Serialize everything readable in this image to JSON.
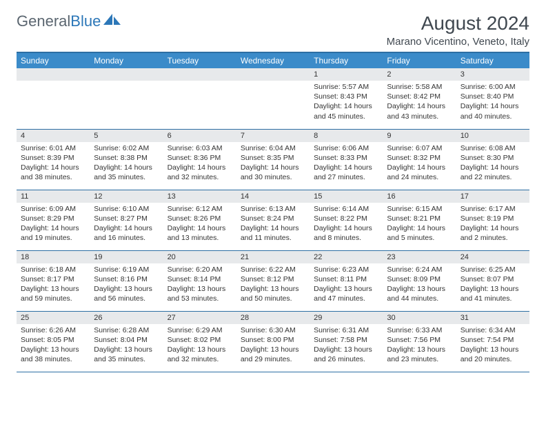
{
  "brand": {
    "part1": "General",
    "part2": "Blue"
  },
  "title": "August 2024",
  "location": "Marano Vicentino, Veneto, Italy",
  "colors": {
    "header_bg": "#3b8bc9",
    "header_border": "#2c6ea3",
    "daynum_bg": "#e7e9eb",
    "text": "#333333",
    "brand_gray": "#5b6670",
    "brand_blue": "#2c77b8"
  },
  "day_headers": [
    "Sunday",
    "Monday",
    "Tuesday",
    "Wednesday",
    "Thursday",
    "Friday",
    "Saturday"
  ],
  "weeks": [
    [
      {
        "n": "",
        "sr": "",
        "ss": "",
        "dl": ""
      },
      {
        "n": "",
        "sr": "",
        "ss": "",
        "dl": ""
      },
      {
        "n": "",
        "sr": "",
        "ss": "",
        "dl": ""
      },
      {
        "n": "",
        "sr": "",
        "ss": "",
        "dl": ""
      },
      {
        "n": "1",
        "sr": "Sunrise: 5:57 AM",
        "ss": "Sunset: 8:43 PM",
        "dl": "Daylight: 14 hours and 45 minutes."
      },
      {
        "n": "2",
        "sr": "Sunrise: 5:58 AM",
        "ss": "Sunset: 8:42 PM",
        "dl": "Daylight: 14 hours and 43 minutes."
      },
      {
        "n": "3",
        "sr": "Sunrise: 6:00 AM",
        "ss": "Sunset: 8:40 PM",
        "dl": "Daylight: 14 hours and 40 minutes."
      }
    ],
    [
      {
        "n": "4",
        "sr": "Sunrise: 6:01 AM",
        "ss": "Sunset: 8:39 PM",
        "dl": "Daylight: 14 hours and 38 minutes."
      },
      {
        "n": "5",
        "sr": "Sunrise: 6:02 AM",
        "ss": "Sunset: 8:38 PM",
        "dl": "Daylight: 14 hours and 35 minutes."
      },
      {
        "n": "6",
        "sr": "Sunrise: 6:03 AM",
        "ss": "Sunset: 8:36 PM",
        "dl": "Daylight: 14 hours and 32 minutes."
      },
      {
        "n": "7",
        "sr": "Sunrise: 6:04 AM",
        "ss": "Sunset: 8:35 PM",
        "dl": "Daylight: 14 hours and 30 minutes."
      },
      {
        "n": "8",
        "sr": "Sunrise: 6:06 AM",
        "ss": "Sunset: 8:33 PM",
        "dl": "Daylight: 14 hours and 27 minutes."
      },
      {
        "n": "9",
        "sr": "Sunrise: 6:07 AM",
        "ss": "Sunset: 8:32 PM",
        "dl": "Daylight: 14 hours and 24 minutes."
      },
      {
        "n": "10",
        "sr": "Sunrise: 6:08 AM",
        "ss": "Sunset: 8:30 PM",
        "dl": "Daylight: 14 hours and 22 minutes."
      }
    ],
    [
      {
        "n": "11",
        "sr": "Sunrise: 6:09 AM",
        "ss": "Sunset: 8:29 PM",
        "dl": "Daylight: 14 hours and 19 minutes."
      },
      {
        "n": "12",
        "sr": "Sunrise: 6:10 AM",
        "ss": "Sunset: 8:27 PM",
        "dl": "Daylight: 14 hours and 16 minutes."
      },
      {
        "n": "13",
        "sr": "Sunrise: 6:12 AM",
        "ss": "Sunset: 8:26 PM",
        "dl": "Daylight: 14 hours and 13 minutes."
      },
      {
        "n": "14",
        "sr": "Sunrise: 6:13 AM",
        "ss": "Sunset: 8:24 PM",
        "dl": "Daylight: 14 hours and 11 minutes."
      },
      {
        "n": "15",
        "sr": "Sunrise: 6:14 AM",
        "ss": "Sunset: 8:22 PM",
        "dl": "Daylight: 14 hours and 8 minutes."
      },
      {
        "n": "16",
        "sr": "Sunrise: 6:15 AM",
        "ss": "Sunset: 8:21 PM",
        "dl": "Daylight: 14 hours and 5 minutes."
      },
      {
        "n": "17",
        "sr": "Sunrise: 6:17 AM",
        "ss": "Sunset: 8:19 PM",
        "dl": "Daylight: 14 hours and 2 minutes."
      }
    ],
    [
      {
        "n": "18",
        "sr": "Sunrise: 6:18 AM",
        "ss": "Sunset: 8:17 PM",
        "dl": "Daylight: 13 hours and 59 minutes."
      },
      {
        "n": "19",
        "sr": "Sunrise: 6:19 AM",
        "ss": "Sunset: 8:16 PM",
        "dl": "Daylight: 13 hours and 56 minutes."
      },
      {
        "n": "20",
        "sr": "Sunrise: 6:20 AM",
        "ss": "Sunset: 8:14 PM",
        "dl": "Daylight: 13 hours and 53 minutes."
      },
      {
        "n": "21",
        "sr": "Sunrise: 6:22 AM",
        "ss": "Sunset: 8:12 PM",
        "dl": "Daylight: 13 hours and 50 minutes."
      },
      {
        "n": "22",
        "sr": "Sunrise: 6:23 AM",
        "ss": "Sunset: 8:11 PM",
        "dl": "Daylight: 13 hours and 47 minutes."
      },
      {
        "n": "23",
        "sr": "Sunrise: 6:24 AM",
        "ss": "Sunset: 8:09 PM",
        "dl": "Daylight: 13 hours and 44 minutes."
      },
      {
        "n": "24",
        "sr": "Sunrise: 6:25 AM",
        "ss": "Sunset: 8:07 PM",
        "dl": "Daylight: 13 hours and 41 minutes."
      }
    ],
    [
      {
        "n": "25",
        "sr": "Sunrise: 6:26 AM",
        "ss": "Sunset: 8:05 PM",
        "dl": "Daylight: 13 hours and 38 minutes."
      },
      {
        "n": "26",
        "sr": "Sunrise: 6:28 AM",
        "ss": "Sunset: 8:04 PM",
        "dl": "Daylight: 13 hours and 35 minutes."
      },
      {
        "n": "27",
        "sr": "Sunrise: 6:29 AM",
        "ss": "Sunset: 8:02 PM",
        "dl": "Daylight: 13 hours and 32 minutes."
      },
      {
        "n": "28",
        "sr": "Sunrise: 6:30 AM",
        "ss": "Sunset: 8:00 PM",
        "dl": "Daylight: 13 hours and 29 minutes."
      },
      {
        "n": "29",
        "sr": "Sunrise: 6:31 AM",
        "ss": "Sunset: 7:58 PM",
        "dl": "Daylight: 13 hours and 26 minutes."
      },
      {
        "n": "30",
        "sr": "Sunrise: 6:33 AM",
        "ss": "Sunset: 7:56 PM",
        "dl": "Daylight: 13 hours and 23 minutes."
      },
      {
        "n": "31",
        "sr": "Sunrise: 6:34 AM",
        "ss": "Sunset: 7:54 PM",
        "dl": "Daylight: 13 hours and 20 minutes."
      }
    ]
  ]
}
